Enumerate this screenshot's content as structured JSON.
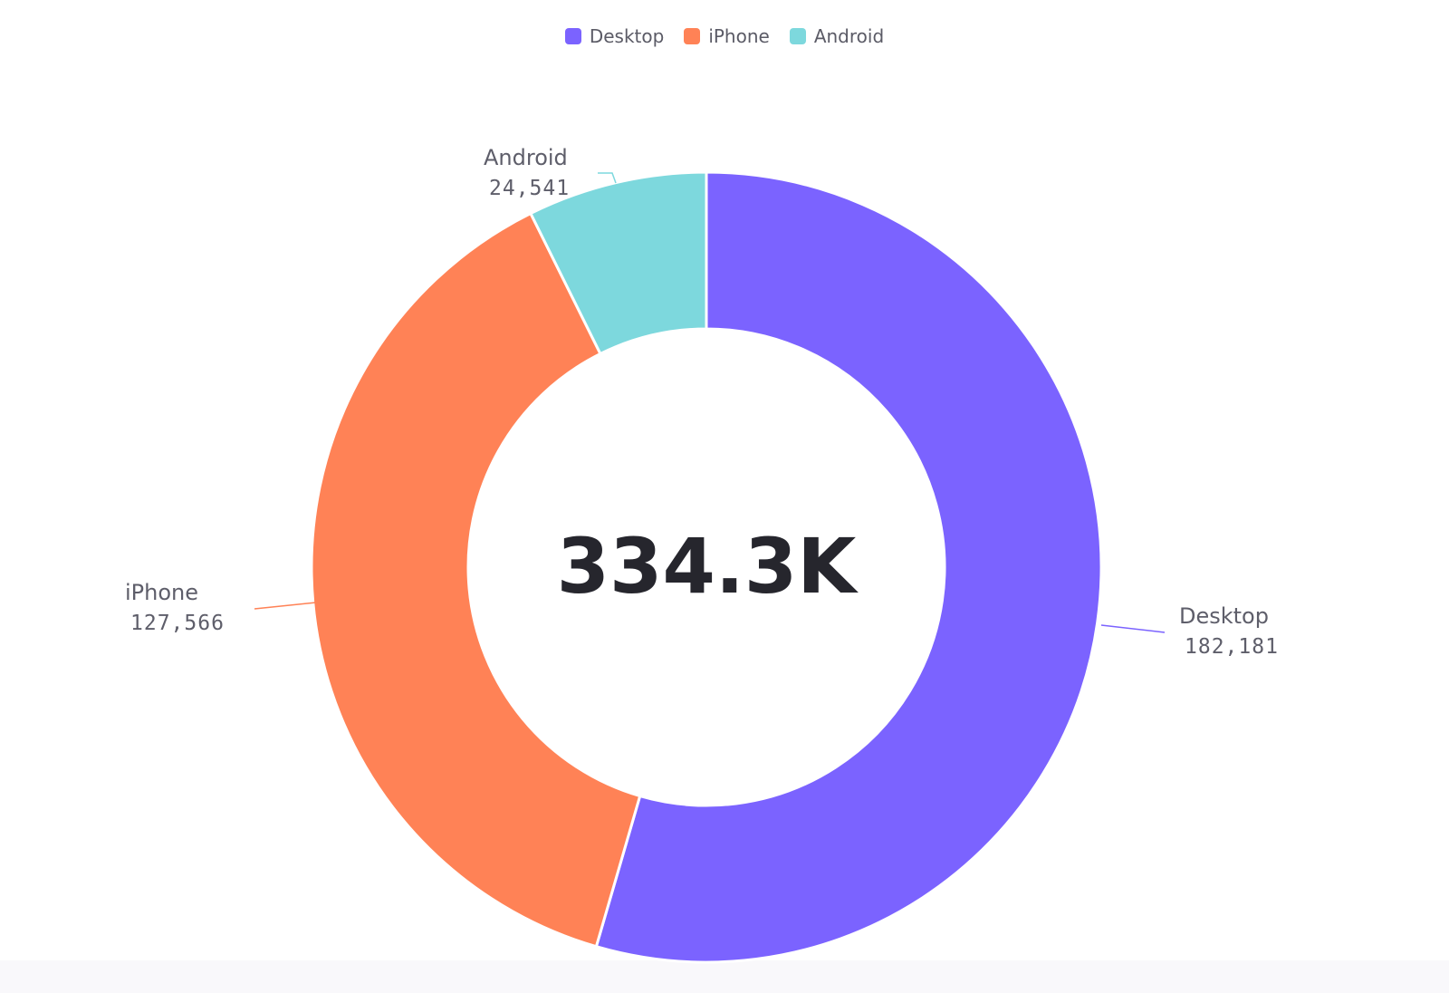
{
  "chart_data": {
    "type": "pie",
    "variant": "donut",
    "title": "",
    "total_label": "334.3K",
    "legend_position": "top-center",
    "categories": [
      "Desktop",
      "iPhone",
      "Android"
    ],
    "values": [
      182181,
      127566,
      24541
    ],
    "value_labels": [
      "182,181",
      "127,566",
      "24,541"
    ],
    "colors": [
      "#7b63ff",
      "#ff8256",
      "#7dd8dd"
    ]
  },
  "legend": {
    "items": [
      {
        "label": "Desktop",
        "color": "#7b63ff"
      },
      {
        "label": "iPhone",
        "color": "#ff8256"
      },
      {
        "label": "Android",
        "color": "#7dd8dd"
      }
    ]
  }
}
